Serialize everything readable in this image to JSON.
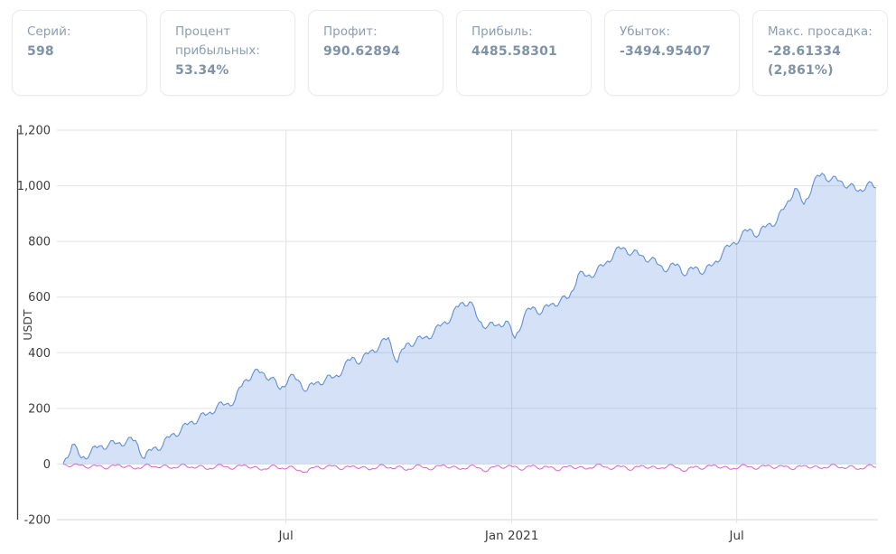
{
  "stats_cards": [
    {
      "id": "series",
      "label": "Серий:",
      "value": "598"
    },
    {
      "id": "win-percent",
      "label": "Процент прибыльных:",
      "value": "53.34%"
    },
    {
      "id": "profit",
      "label": "Профит:",
      "value": "990.62894"
    },
    {
      "id": "gain",
      "label": "Прибыль:",
      "value": "4485.58301"
    },
    {
      "id": "loss",
      "label": "Убыток:",
      "value": "-3494.95407"
    },
    {
      "id": "max-drawdown",
      "label": "Макс. просадка:",
      "value": "-28.61334",
      "value2": "(2,861%)"
    }
  ],
  "chart_data": {
    "type": "area",
    "title": "",
    "xlabel": "",
    "ylabel": "USDT",
    "ylim": [
      -200,
      1200
    ],
    "grid": true,
    "legend": false,
    "y_ticks": [
      {
        "value": 1200,
        "label": "1,200"
      },
      {
        "value": 1000,
        "label": "1,000"
      },
      {
        "value": 800,
        "label": "800"
      },
      {
        "value": 600,
        "label": "600"
      },
      {
        "value": 400,
        "label": "400"
      },
      {
        "value": 200,
        "label": "200"
      },
      {
        "value": 0,
        "label": "0"
      },
      {
        "value": -200,
        "label": "-200"
      }
    ],
    "x_ticks": [
      {
        "pos": 0.279,
        "label": "Jul"
      },
      {
        "pos": 0.554,
        "label": "Jan 2021"
      },
      {
        "pos": 0.828,
        "label": "Jul"
      }
    ],
    "series": [
      {
        "name": "cumulative-equity",
        "type": "area",
        "color": "#5f8fdc",
        "fill": "rgba(95,143,220,0.27)",
        "values": [
          2,
          70,
          22,
          40,
          65,
          68,
          75,
          81,
          85,
          20,
          59,
          65,
          107,
          118,
          150,
          163,
          180,
          205,
          215,
          228,
          297,
          325,
          330,
          309,
          268,
          312,
          302,
          265,
          293,
          302,
          312,
          341,
          384,
          368,
          406,
          423,
          455,
          365,
          433,
          439,
          455,
          470,
          505,
          528,
          579,
          583,
          515,
          495,
          498,
          514,
          452,
          530,
          565,
          545,
          575,
          585,
          598,
          680,
          676,
          690,
          719,
          758,
          778,
          758,
          750,
          735,
          715,
          700,
          719,
          680,
          709,
          690,
          719,
          758,
          790,
          815,
          845,
          823,
          862,
          872,
          930,
          990,
          933,
          1005,
          1045,
          1022,
          1018,
          1000,
          980,
          1005,
          992
        ]
      },
      {
        "name": "per-trade-result",
        "type": "line",
        "color": "#d96ed3",
        "fill": "none",
        "values": [
          -1,
          -6,
          -3,
          -12,
          -5,
          -15,
          -2,
          -9,
          -18,
          -4,
          -11,
          -6,
          -16,
          -3,
          -13,
          -7,
          -20,
          -5,
          -10,
          -15,
          -3,
          -12,
          -22,
          -6,
          -17,
          -9,
          -24,
          -28.6,
          -8,
          -14,
          -5,
          -18,
          -7,
          -12,
          -21,
          -4,
          -15,
          -9,
          -23,
          -6,
          -13,
          -17,
          -3,
          -11,
          -19,
          -7,
          -14,
          -25,
          -5,
          -12,
          -8,
          -20,
          -4,
          -16,
          -10,
          -22,
          -6,
          -13,
          -18,
          -3,
          -11,
          -15,
          -7,
          -21,
          -5,
          -12,
          -17,
          -4,
          -14,
          -24,
          -8,
          -16,
          -3,
          -12,
          -19,
          -6,
          -10,
          -15,
          -4,
          -13,
          -7,
          -18,
          -5,
          -11,
          -16,
          -3,
          -14,
          -8,
          -20,
          -6,
          -12
        ]
      }
    ],
    "colors": {
      "grid": "#e2e2e2",
      "grid_bottom": "#d6d6d6",
      "axis_line": "#3d3d3d",
      "tick_text": "#3d3d3d",
      "equity_line": "#5f8fdc",
      "equity_fill": "rgba(95,143,220,0.27)",
      "drawdown_line": "#d96ed3",
      "card_label_text": "#8c9eb0",
      "card_value_text": "#7e93a8",
      "card_border": "#ebebeb"
    },
    "render_noise": {
      "equity": [
        13,
        7
      ],
      "drawdown": [
        5,
        3
      ]
    }
  }
}
